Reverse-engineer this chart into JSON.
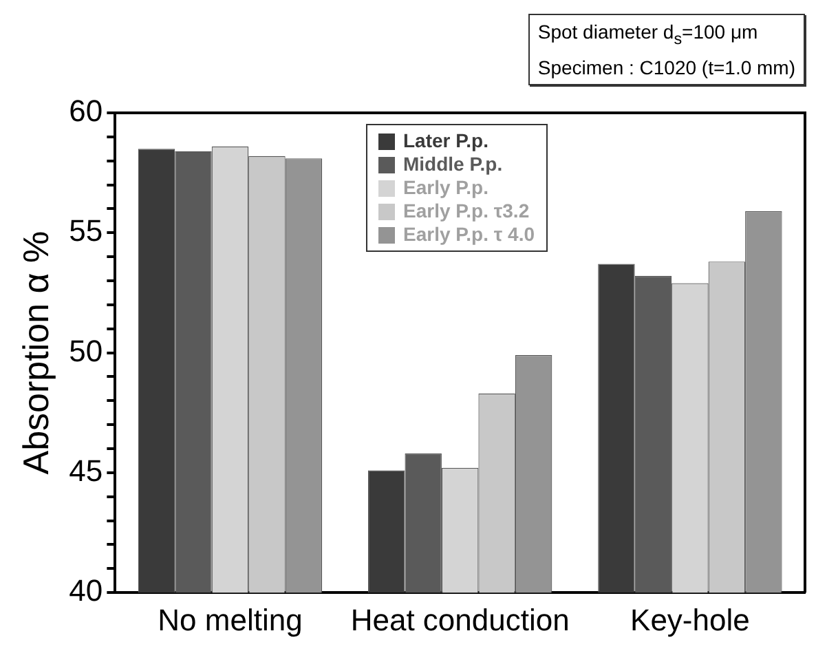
{
  "chart_data": {
    "type": "bar",
    "ylabel": "Absorption α %",
    "categories": [
      "No melting",
      "Heat conduction",
      "Key-hole"
    ],
    "series": [
      {
        "name": "Later P.p.",
        "color": "#3a3a3a",
        "values": [
          58.5,
          45.1,
          53.7
        ]
      },
      {
        "name": "Middle P.p.",
        "color": "#5a5a5a",
        "values": [
          58.4,
          45.8,
          53.2
        ]
      },
      {
        "name": "Early P.p.",
        "color": "#d4d4d4",
        "values": [
          58.6,
          45.2,
          52.9
        ]
      },
      {
        "name": "Early P.p. τ3.2",
        "color": "#c8c8c8",
        "values": [
          58.2,
          48.3,
          53.8
        ]
      },
      {
        "name": "Early P.p. τ 4.0",
        "color": "#949494",
        "values": [
          58.1,
          49.9,
          55.9
        ]
      }
    ],
    "ylim": [
      40,
      60
    ],
    "yticks": [
      40,
      {
        "value": 41,
        "label": null
      },
      {
        "value": 42,
        "label": null
      },
      {
        "value": 43,
        "label": null
      },
      {
        "value": 44,
        "label": null
      },
      45,
      {
        "value": 46,
        "label": null
      },
      {
        "value": 47,
        "label": null
      },
      {
        "value": 48,
        "label": null
      },
      {
        "value": 49,
        "label": null
      },
      50,
      {
        "value": 51,
        "label": null
      },
      {
        "value": 52,
        "label": null
      },
      {
        "value": 53,
        "label": null
      },
      {
        "value": 54,
        "label": null
      },
      55,
      {
        "value": 56,
        "label": null
      },
      {
        "value": 57,
        "label": null
      },
      {
        "value": 58,
        "label": null
      },
      {
        "value": 59,
        "label": null
      },
      60
    ],
    "grid": false,
    "legend": "top",
    "annotations": [
      "Spot diameter d$_{s}$=100 μm",
      "Specimen : C1020 (t=1.0 mm)"
    ]
  }
}
